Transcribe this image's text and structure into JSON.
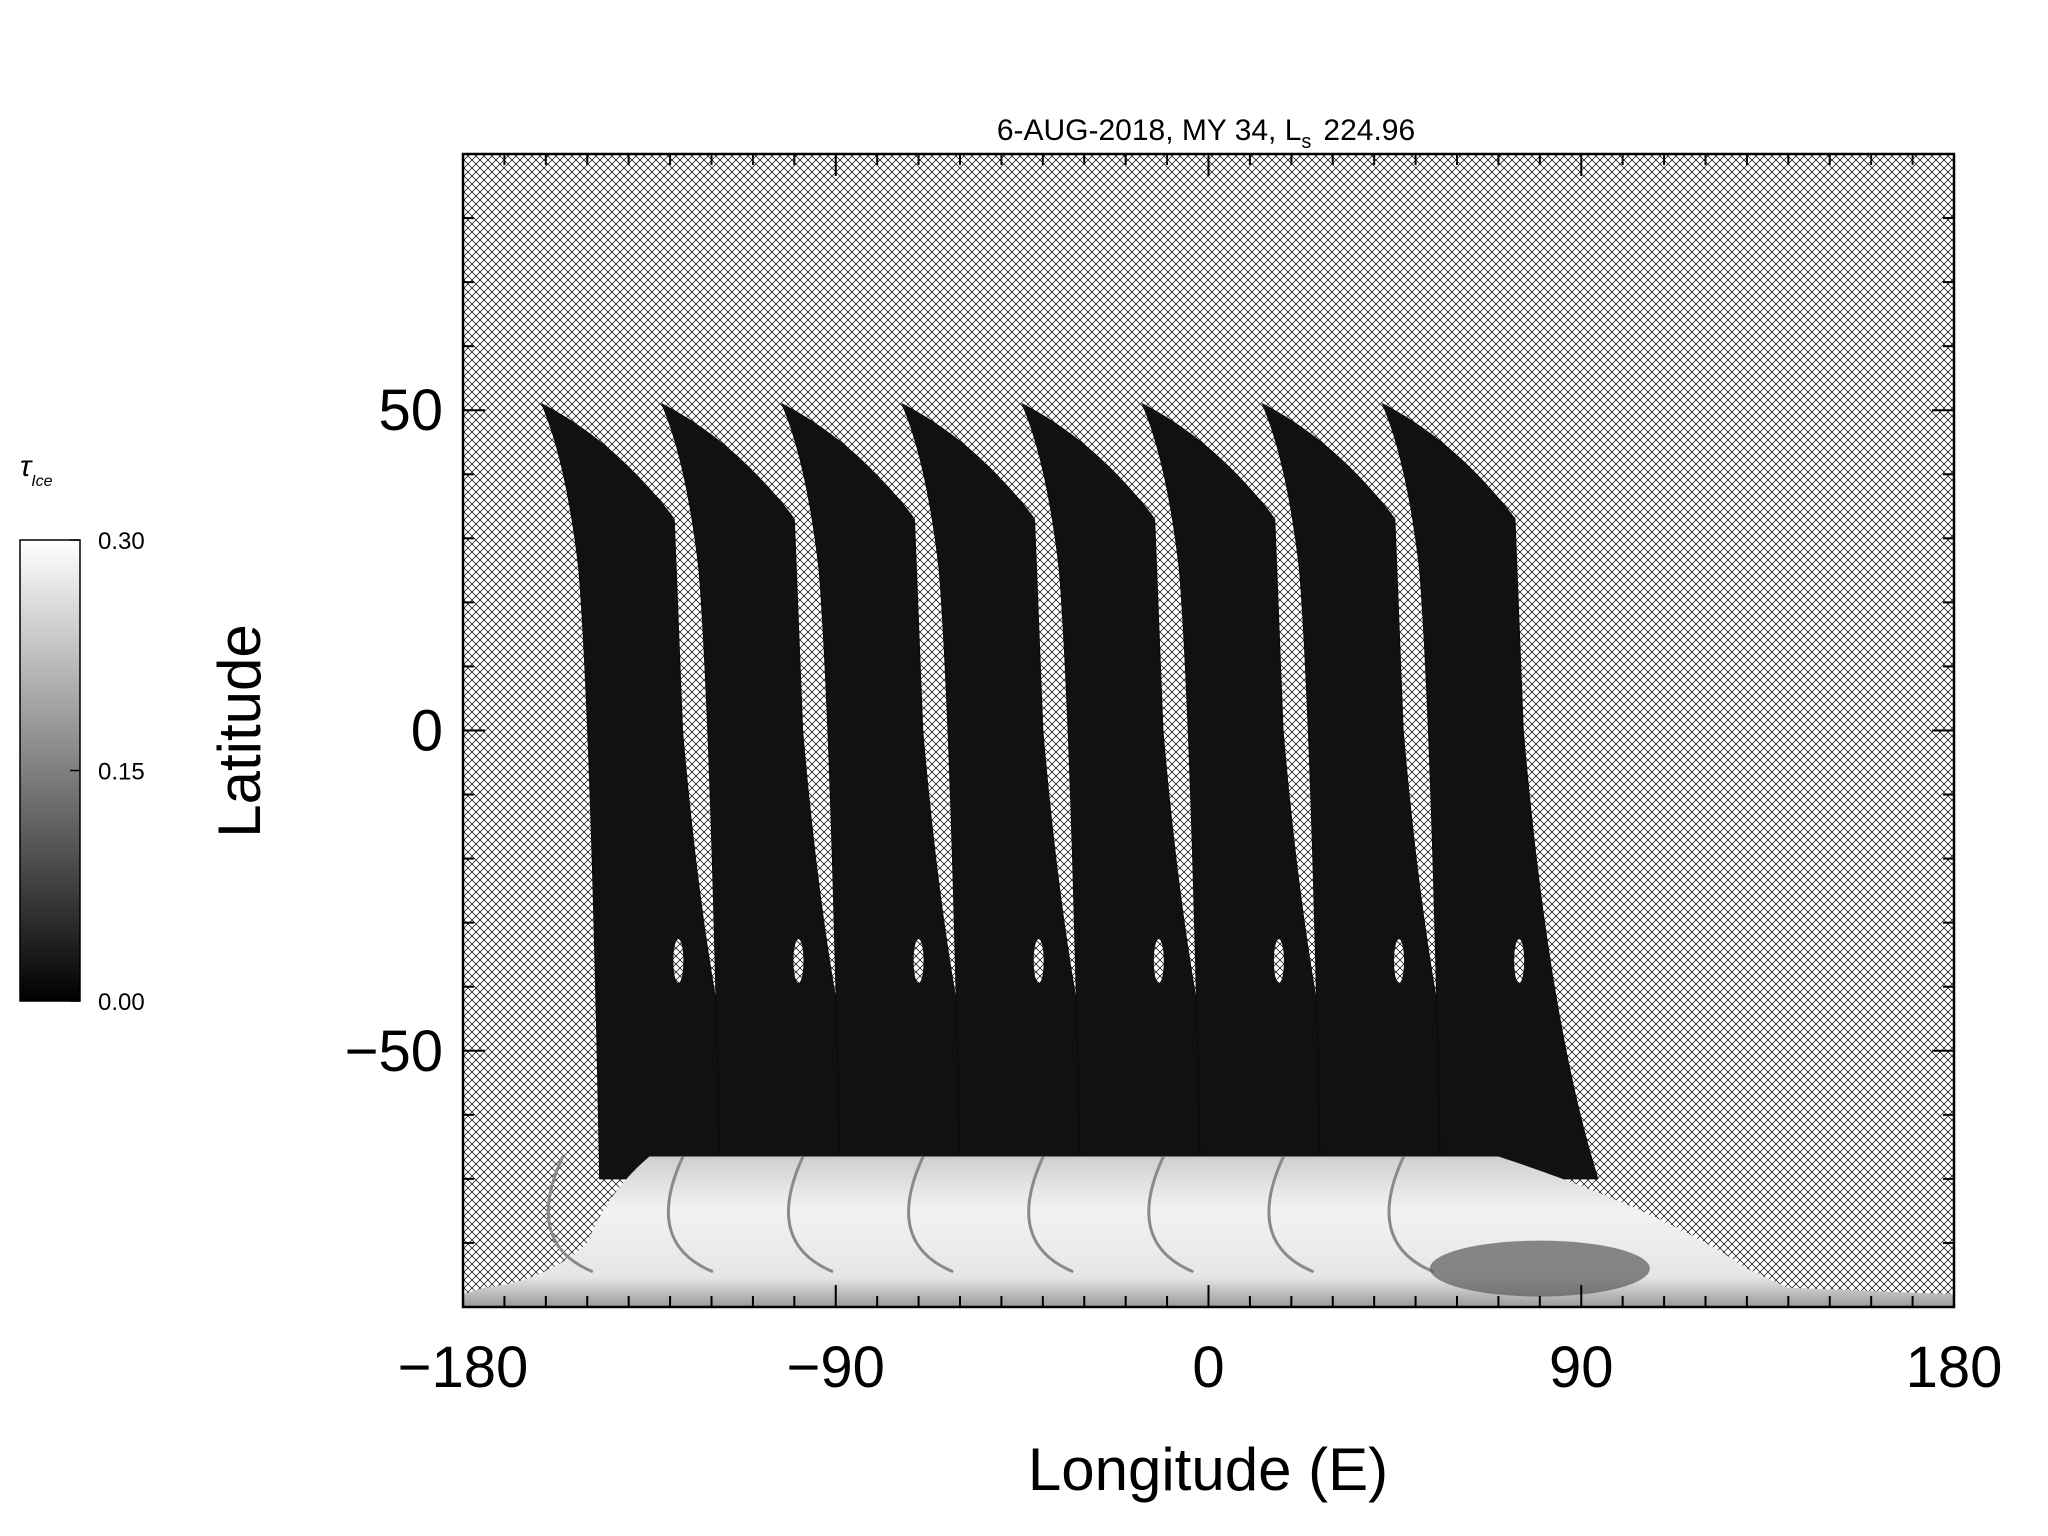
{
  "chart_data": {
    "type": "heatmap",
    "title": "6-AUG-2018, MY 34,  L",
    "title_sub": "s",
    "title_value": "224.96",
    "xlabel": "Longitude (E)",
    "ylabel": "Latitude",
    "xlim": [
      -180,
      180
    ],
    "ylim": [
      -90,
      90
    ],
    "x_ticks": [
      -180,
      -90,
      0,
      90,
      180
    ],
    "x_tick_labels": [
      "−180",
      "−90",
      "0",
      "90",
      "180"
    ],
    "y_ticks": [
      -50,
      0,
      50
    ],
    "y_tick_labels": [
      "−50",
      "0",
      "50"
    ],
    "x_minor_step": 10,
    "y_minor_step": 10,
    "no_data_fill": "crosshatch",
    "colorbar": {
      "label_symbol": "τ",
      "label_sub": "Ice",
      "min": 0.0,
      "max": 0.3,
      "ticks": [
        0.0,
        0.15,
        0.3
      ],
      "tick_labels": [
        "0.00",
        "0.15",
        "0.30"
      ],
      "colormap": "grayscale",
      "color_low": "#000000",
      "color_high": "#ffffff"
    },
    "swaths": {
      "count": 8,
      "center_longitudes_at_lat_50": [
        -161,
        -132,
        -103,
        -74,
        -45,
        -16,
        13,
        42
      ],
      "lat_top": 51,
      "lat_bottom": -70,
      "typical_tau": 0.02
    },
    "south_polar_region": {
      "lat_range": [
        -90,
        -66
      ],
      "lon_range": [
        -180,
        130
      ],
      "typical_tau": 0.28
    }
  }
}
